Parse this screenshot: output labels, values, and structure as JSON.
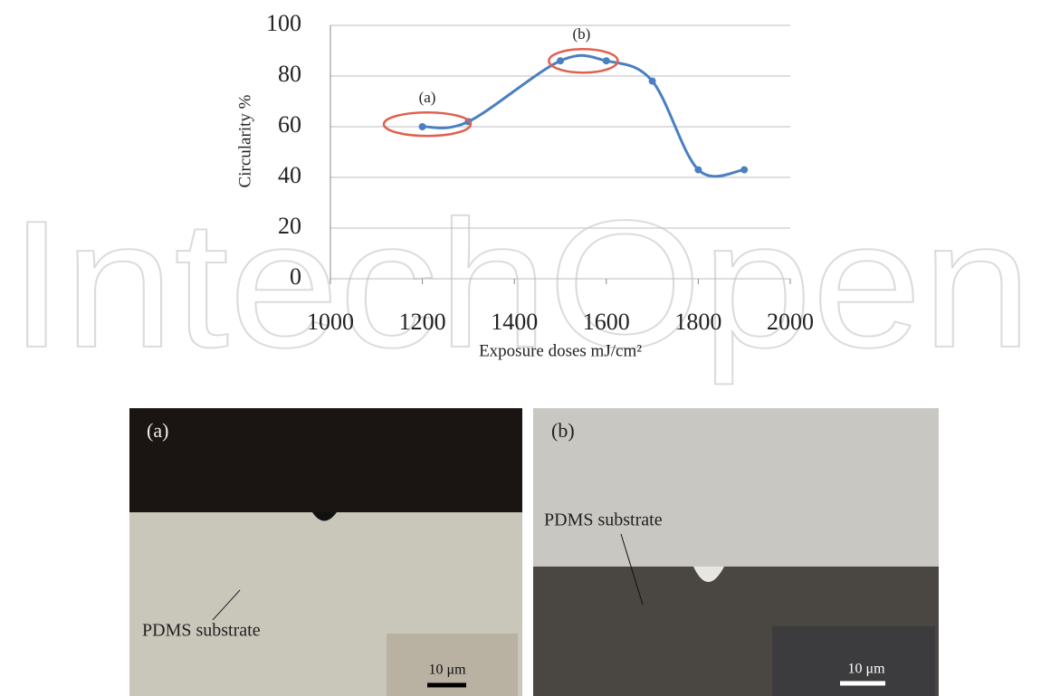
{
  "watermark": "IntechOpen",
  "chart_data": {
    "type": "line",
    "x": [
      1200,
      1300,
      1500,
      1600,
      1700,
      1800,
      1900
    ],
    "series": [
      {
        "color": "#4a7fc0",
        "values": [
          60,
          62,
          86,
          86,
          78,
          43,
          43
        ]
      }
    ],
    "xlim": [
      1000,
      2000
    ],
    "xticks": [
      1000,
      1200,
      1400,
      1600,
      1800,
      2000
    ],
    "ylim": [
      0,
      100
    ],
    "yticks": [
      0,
      20,
      40,
      60,
      80,
      100
    ],
    "grid": true,
    "x_label": "Exposure doses mJ/cm²",
    "y_label": "Circularity %",
    "annotations": [
      "(a)",
      "(b)"
    ]
  },
  "panels": [
    {
      "label": "(a)",
      "annotation": "PDMS substrate",
      "scale_bar": "10 μm"
    },
    {
      "label": "(b)",
      "annotation": "PDMS substrate",
      "scale_bar": "10 μm"
    }
  ]
}
